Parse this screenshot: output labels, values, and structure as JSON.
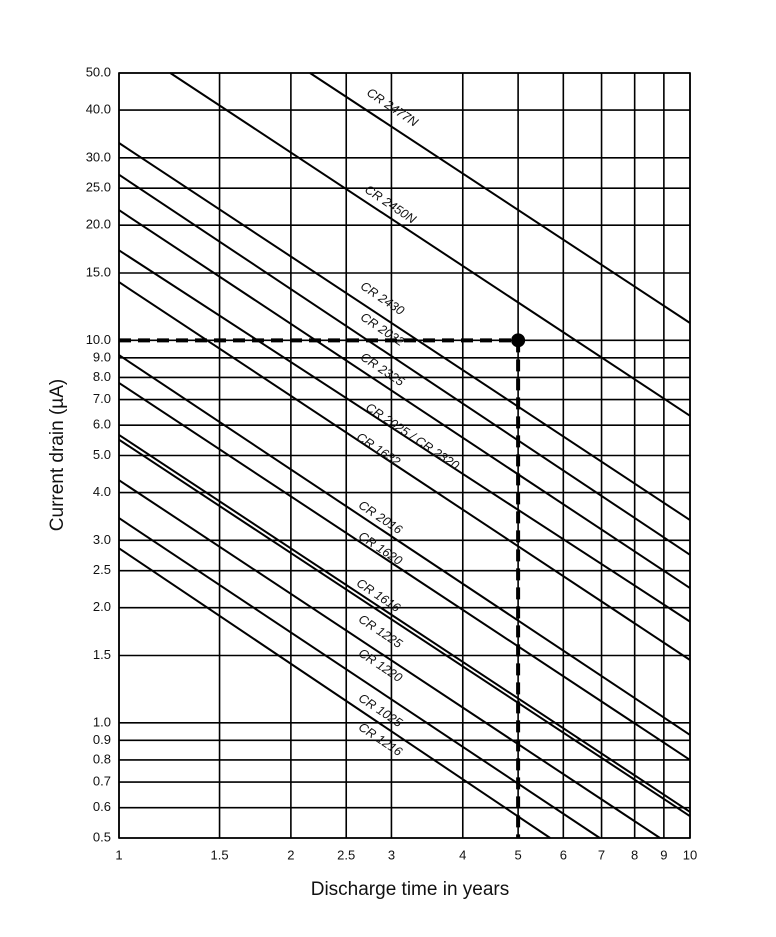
{
  "chart_data": {
    "type": "line",
    "x_label": "Discharge time in years",
    "y_label": "Current drain (µA)",
    "log_x": true,
    "log_y": true,
    "grid": true,
    "color": "#000000",
    "xlim": [
      1,
      10
    ],
    "ylim": [
      0.5,
      50
    ],
    "xticks": [
      1,
      1.5,
      2,
      2.5,
      3,
      4,
      5,
      6,
      7,
      8,
      9,
      10
    ],
    "yticks": [
      {
        "value": 50,
        "label": "50.0"
      },
      {
        "value": 40,
        "label": "40.0"
      },
      {
        "value": 30,
        "label": "30.0"
      },
      {
        "value": 25,
        "label": "25.0"
      },
      {
        "value": 20,
        "label": "20.0"
      },
      {
        "value": 15,
        "label": "15.0"
      },
      {
        "value": 10,
        "label": "10.0"
      },
      {
        "value": 9,
        "label": "9.0"
      },
      {
        "value": 8,
        "label": "8.0"
      },
      {
        "value": 7,
        "label": "7.0"
      },
      {
        "value": 6,
        "label": "6.0"
      },
      {
        "value": 5,
        "label": "5.0"
      },
      {
        "value": 4,
        "label": "4.0"
      },
      {
        "value": 3,
        "label": "3.0"
      },
      2.5,
      {
        "value": 2,
        "label": "2.0"
      },
      1.5,
      {
        "value": 1,
        "label": "1.0"
      },
      0.9,
      0.8,
      0.7,
      0.6,
      0.5
    ],
    "series": [
      {
        "name": "CR 2477N",
        "x": [
          2.16,
          10
        ],
        "values": [
          50,
          11.1
        ]
      },
      {
        "name": "CR 2450N",
        "x": [
          1.23,
          10
        ],
        "values": [
          50,
          6.35
        ]
      },
      {
        "name": "CR 2430",
        "x": [
          1,
          10
        ],
        "values": [
          32.8,
          3.39
        ]
      },
      {
        "name": "CR 2032",
        "x": [
          1,
          10
        ],
        "values": [
          27.1,
          2.75
        ]
      },
      {
        "name": "CR 2325",
        "x": [
          1,
          10
        ],
        "values": [
          21.9,
          2.25
        ]
      },
      {
        "name": "CR 2025 / CR 2320",
        "x": [
          1,
          10
        ],
        "values": [
          17.2,
          1.84
        ]
      },
      {
        "name": "CR 1632",
        "x": [
          1,
          10
        ],
        "values": [
          14.2,
          1.46
        ]
      },
      {
        "name": "CR 2016",
        "x": [
          1,
          10
        ],
        "values": [
          9.15,
          0.93
        ]
      },
      {
        "name": "CR 1620",
        "x": [
          1,
          10
        ],
        "values": [
          7.74,
          0.8
        ]
      },
      {
        "name": "CR 1616",
        "x": [
          1,
          10
        ],
        "values": [
          5.66,
          0.585
        ]
      },
      {
        "name": "CR 1225",
        "x": [
          1,
          10
        ],
        "values": [
          5.5,
          0.57
        ]
      },
      {
        "name": "CR 1220",
        "x": [
          1,
          8.86
        ],
        "values": [
          4.31,
          0.5
        ]
      },
      {
        "name": "CR 1025",
        "x": [
          1,
          6.95
        ],
        "values": [
          3.43,
          0.5
        ]
      },
      {
        "name": "CR 1216",
        "x": [
          1,
          5.69
        ],
        "values": [
          2.86,
          0.5
        ]
      }
    ],
    "marker": {
      "x": 5,
      "y": 10
    }
  }
}
